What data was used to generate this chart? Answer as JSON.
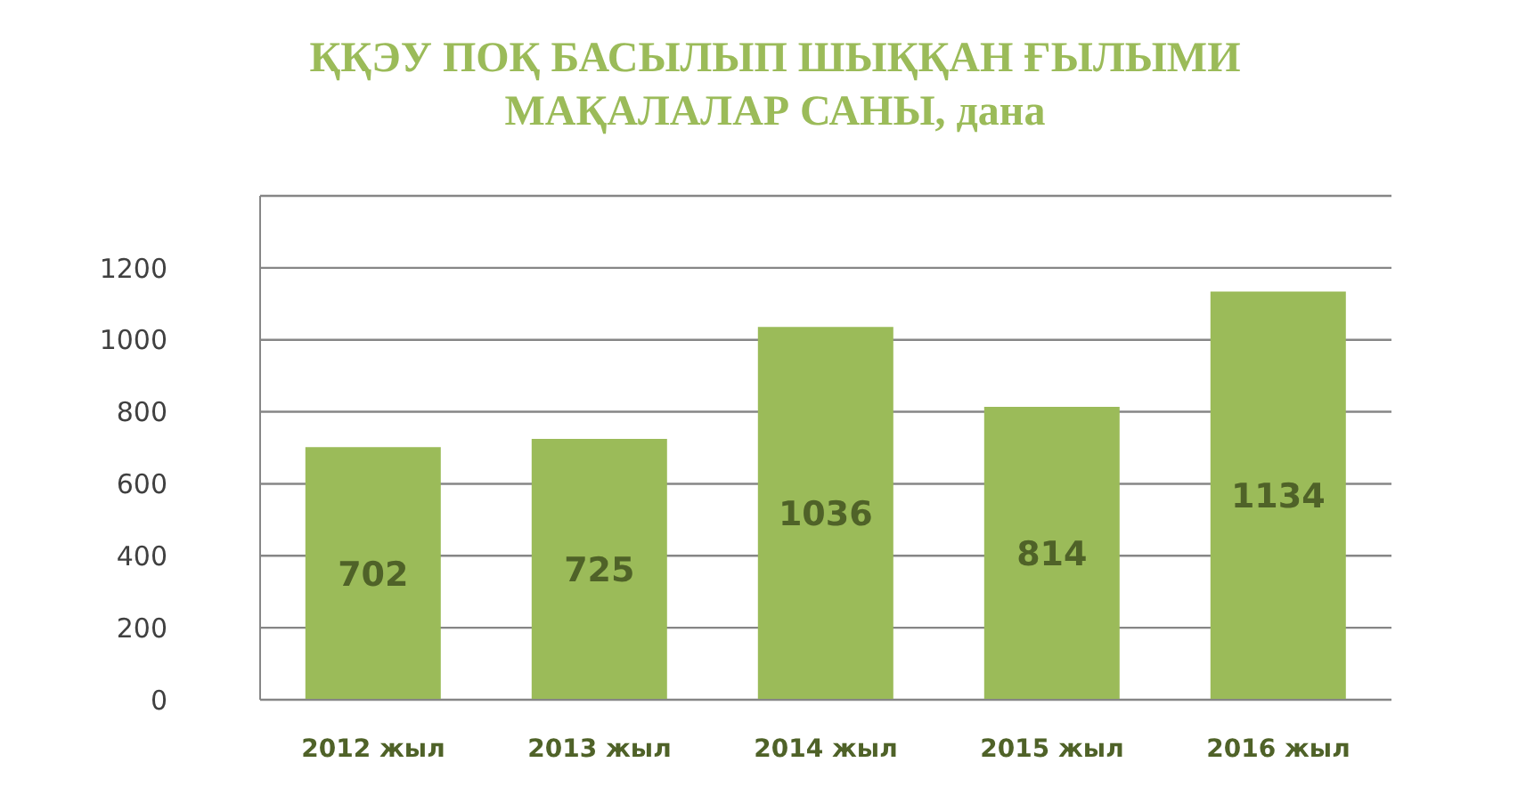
{
  "chart_data": {
    "type": "bar",
    "title": "ҚҚЭУ ПОҚ БАСЫЛЫП ШЫҚҚАН ҒЫЛЫМИ МАҚАЛАЛАР САНЫ, дана",
    "categories": [
      "2012 жыл",
      "2013 жыл",
      "2014 жыл",
      "2015 жыл",
      "2016 жыл"
    ],
    "values": [
      702,
      725,
      1036,
      814,
      1134
    ],
    "color": "#9bbb59",
    "ylim": [
      0,
      1400
    ],
    "yticks": [
      0,
      200,
      400,
      600,
      800,
      1000,
      1200,
      {
        "value": 1400,
        "label": null
      }
    ],
    "grid": "y",
    "data_labels": true
  }
}
